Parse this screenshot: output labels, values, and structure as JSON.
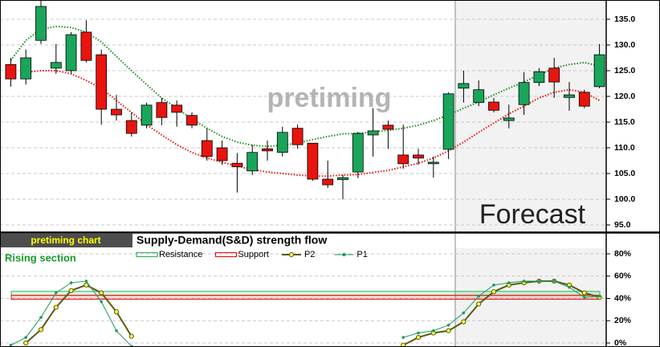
{
  "chart_data": [
    {
      "type": "candlestick",
      "annotations": [
        "pretiming",
        "Forecast"
      ],
      "up_color": "#19a55a",
      "down_color": "#e8140f",
      "open": [
        126.2,
        123.4,
        130.9,
        125.5,
        125.0,
        132.5,
        128.1,
        117.5,
        115.3,
        114.4,
        118.8,
        118.3,
        116.3,
        111.4,
        110.0,
        107.0,
        105.5,
        109.8,
        109.1,
        113.8,
        110.9,
        103.9,
        103.8,
        105.3,
        112.5,
        114.4,
        108.6,
        108.6,
        106.9,
        109.7,
        121.6,
        118.8,
        118.9,
        115.3,
        118.4,
        122.7,
        125.5,
        119.8,
        120.8,
        121.9
      ],
      "high": [
        127.5,
        129.1,
        138.7,
        130.2,
        132.5,
        134.8,
        129.1,
        120.3,
        116.9,
        118.8,
        119.7,
        119.2,
        116.9,
        113.8,
        111.4,
        109.0,
        110.6,
        111.4,
        114.1,
        114.5,
        110.9,
        107.5,
        104.7,
        113.1,
        117.7,
        115.3,
        114.5,
        109.8,
        108.3,
        120.8,
        125.0,
        123.1,
        119.7,
        118.4,
        124.7,
        125.5,
        127.5,
        122.8,
        121.3,
        130.2
      ],
      "low": [
        121.9,
        122.3,
        130.2,
        124.4,
        124.4,
        126.6,
        114.5,
        115.3,
        112.2,
        113.8,
        114.4,
        114.1,
        113.8,
        107.5,
        106.7,
        101.3,
        104.7,
        107.5,
        108.3,
        109.8,
        103.6,
        102.2,
        100.0,
        104.1,
        108.3,
        109.8,
        105.9,
        106.7,
        104.2,
        107.8,
        118.8,
        118.1,
        116.9,
        113.8,
        116.4,
        122.0,
        119.7,
        117.2,
        117.7,
        121.6
      ],
      "close": [
        123.4,
        127.5,
        137.5,
        126.6,
        132.0,
        127.0,
        117.5,
        116.4,
        112.8,
        118.3,
        115.9,
        116.9,
        114.4,
        108.3,
        107.5,
        106.3,
        109.1,
        109.4,
        113.0,
        110.6,
        103.9,
        102.8,
        104.2,
        112.8,
        113.3,
        113.6,
        106.9,
        108.0,
        107.2,
        120.5,
        122.5,
        121.3,
        117.3,
        115.8,
        122.7,
        124.8,
        122.8,
        120.3,
        118.1,
        128.1
      ],
      "series": [
        {
          "color": "#1e8c1e",
          "values": [
            127.0,
            130.9,
            133.1,
            133.6,
            133.4,
            132.5,
            130.6,
            127.8,
            125.0,
            122.3,
            119.7,
            117.7,
            115.6,
            113.8,
            112.2,
            111.1,
            110.5,
            110.3,
            110.5,
            110.9,
            111.6,
            112.2,
            112.7,
            112.8,
            113.1,
            113.4,
            113.8,
            114.4,
            115.3,
            116.4,
            117.7,
            118.9,
            120.3,
            121.6,
            122.8,
            124.2,
            125.5,
            126.2,
            126.6,
            125.9
          ]
        },
        {
          "color": "#e8140f",
          "values": [
            null,
            124.7,
            125.0,
            125.0,
            124.4,
            123.1,
            121.6,
            119.2,
            116.9,
            114.5,
            112.5,
            110.6,
            109.1,
            108.0,
            107.2,
            106.4,
            105.8,
            105.3,
            105.0,
            104.7,
            104.5,
            104.5,
            104.7,
            104.8,
            105.2,
            105.6,
            106.3,
            107.0,
            108.0,
            109.4,
            111.1,
            113.0,
            114.8,
            116.6,
            118.1,
            119.7,
            120.8,
            121.3,
            120.8,
            119.2
          ]
        }
      ],
      "ylim": [
        93.75,
        138.75
      ],
      "yticks": [
        {
          "value": 95,
          "label": "95.0"
        },
        {
          "value": 100,
          "label": "100.0"
        },
        {
          "value": 105,
          "label": "105.0"
        },
        {
          "value": 110,
          "label": "110.0"
        },
        {
          "value": 115,
          "label": "115.0"
        },
        {
          "value": 120,
          "label": "120.0"
        },
        {
          "value": 125,
          "label": "125.0"
        },
        {
          "value": 130,
          "label": "130.0"
        },
        {
          "value": 135,
          "label": "135.0"
        }
      ],
      "grid": true
    },
    {
      "type": "line",
      "label": "pretiming chart",
      "title": "Supply-Demand(S&D)  strength flow",
      "subtitle": "Rising section",
      "levels": [
        {
          "name": "Resistance",
          "color": "#2eb85c",
          "value": 44.5
        },
        {
          "name": "Support",
          "color": "#e8140f",
          "value": 41
        }
      ],
      "series": [
        {
          "name": "P2",
          "color": "#5a5a14",
          "values": [
            null,
            0,
            12,
            32,
            47,
            52,
            45,
            28,
            6,
            null,
            null,
            null,
            null,
            null,
            null,
            null,
            null,
            null,
            null,
            null,
            null,
            null,
            null,
            null,
            null,
            null,
            -2,
            5,
            9,
            11,
            19,
            35,
            46,
            52,
            54,
            55.5,
            55.5,
            52,
            45,
            41
          ]
        },
        {
          "name": "P1",
          "color": "#1a9a5a",
          "values": [
            -2,
            5,
            23,
            45,
            54,
            55.5,
            37,
            11,
            -3,
            null,
            null,
            null,
            null,
            null,
            null,
            null,
            null,
            null,
            null,
            null,
            null,
            null,
            null,
            null,
            null,
            null,
            5,
            9,
            11,
            16,
            27,
            42,
            52,
            54,
            55.5,
            55.5,
            55.5,
            50,
            41,
            42
          ]
        }
      ],
      "ylim": [
        -3.6,
        98
      ],
      "yticks": [
        {
          "value": 0,
          "label": "0%"
        },
        {
          "value": 20,
          "label": "20%"
        },
        {
          "value": 40,
          "label": "40%"
        },
        {
          "value": 60,
          "label": "60%"
        },
        {
          "value": 80,
          "label": "80%"
        }
      ],
      "grid": true
    }
  ]
}
